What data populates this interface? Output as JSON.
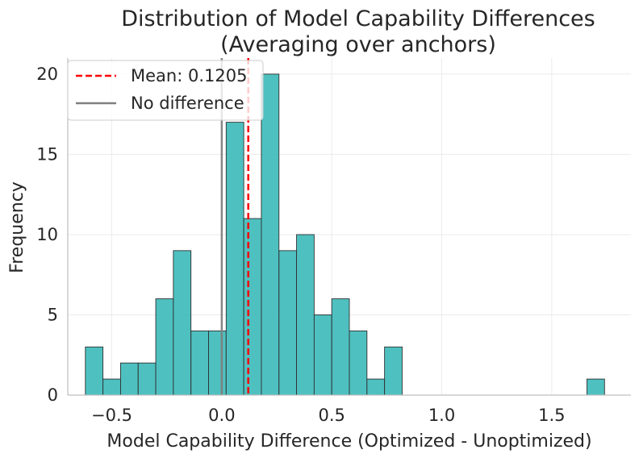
{
  "chart_data": {
    "type": "bar",
    "subtype": "histogram",
    "title": "Distribution of Model Capability Differences",
    "subtitle": "(Averaging over anchors)",
    "xlabel": "Model Capability Difference (Optimized - Unoptimized)",
    "ylabel": "Frequency",
    "xlim": [
      -0.7,
      1.86
    ],
    "ylim": [
      0,
      21
    ],
    "xticks": [
      -0.5,
      0.0,
      0.5,
      1.0,
      1.5
    ],
    "xtick_labels": [
      "−0.5",
      "0.0",
      "0.5",
      "1.0",
      "1.5"
    ],
    "yticks": [
      0,
      5,
      10,
      15,
      20
    ],
    "ytick_labels": [
      "0",
      "5",
      "10",
      "15",
      "20"
    ],
    "grid": true,
    "legend_position": "top-left",
    "bar_color": "#3cb9b9",
    "bins": [
      {
        "x0": -0.62,
        "x1": -0.54,
        "count": 3
      },
      {
        "x0": -0.54,
        "x1": -0.46,
        "count": 1
      },
      {
        "x0": -0.46,
        "x1": -0.38,
        "count": 2
      },
      {
        "x0": -0.38,
        "x1": -0.3,
        "count": 2
      },
      {
        "x0": -0.3,
        "x1": -0.22,
        "count": 6
      },
      {
        "x0": -0.22,
        "x1": -0.14,
        "count": 9
      },
      {
        "x0": -0.14,
        "x1": -0.06,
        "count": 4
      },
      {
        "x0": -0.06,
        "x1": 0.02,
        "count": 4
      },
      {
        "x0": 0.02,
        "x1": 0.1,
        "count": 17
      },
      {
        "x0": 0.1,
        "x1": 0.18,
        "count": 11
      },
      {
        "x0": 0.18,
        "x1": 0.26,
        "count": 20
      },
      {
        "x0": 0.26,
        "x1": 0.34,
        "count": 9
      },
      {
        "x0": 0.34,
        "x1": 0.42,
        "count": 10
      },
      {
        "x0": 0.42,
        "x1": 0.5,
        "count": 5
      },
      {
        "x0": 0.5,
        "x1": 0.58,
        "count": 6
      },
      {
        "x0": 0.58,
        "x1": 0.66,
        "count": 4
      },
      {
        "x0": 0.66,
        "x1": 0.74,
        "count": 1
      },
      {
        "x0": 0.74,
        "x1": 0.82,
        "count": 3
      },
      {
        "x0": 1.66,
        "x1": 1.74,
        "count": 1
      }
    ],
    "reference_lines": [
      {
        "name": "Mean: 0.1205",
        "x": 0.1205,
        "color": "#ff0000",
        "style": "dashed"
      },
      {
        "name": "No difference",
        "x": 0.0,
        "color": "#808080",
        "style": "solid"
      }
    ]
  }
}
